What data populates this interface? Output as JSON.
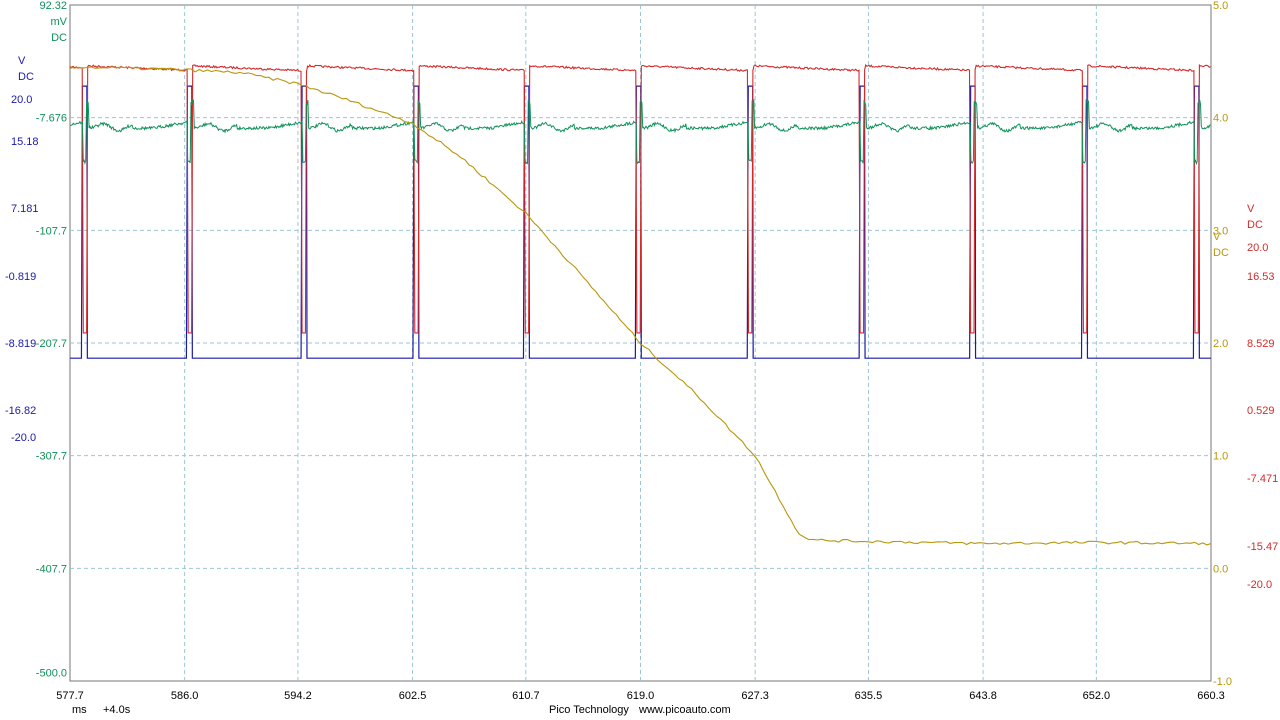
{
  "chart_data": {
    "type": "line",
    "x_axis": {
      "ticks": [
        "577.7",
        "586.0",
        "594.2",
        "602.5",
        "610.7",
        "619.0",
        "627.3",
        "635.5",
        "643.8",
        "652.0",
        "660.3"
      ],
      "unit": "ms",
      "offset": "+4.0s",
      "range": [
        577.7,
        660.3
      ]
    },
    "axes": {
      "green": {
        "color": "#10915a",
        "unit_lines": [
          "mV",
          "DC"
        ],
        "ticks": [
          "92.32",
          "-7.676",
          "-107.7",
          "-207.7",
          "-307.7",
          "-407.7",
          "-500.0"
        ],
        "range": [
          -507.7,
          92.32
        ]
      },
      "blue": {
        "color": "#1a1aa8",
        "unit_lines": [
          "V",
          "DC"
        ],
        "ticks": [
          "20.0",
          "15.18",
          "7.181",
          "-0.819",
          "-8.819",
          "-16.82",
          "-20.0"
        ],
        "range": [
          -20.0,
          20.0
        ]
      },
      "red": {
        "color": "#d42a2a",
        "unit_lines": [
          "V",
          "DC"
        ],
        "ticks": [
          "20.0",
          "16.53",
          "8.529",
          "0.529",
          "-7.471",
          "-15.47",
          "-20.0"
        ],
        "range": [
          -20.0,
          20.0
        ]
      },
      "yellow": {
        "color": "#b8960c",
        "unit_lines": [
          "V",
          "DC"
        ],
        "ticks": [
          "5.0",
          "4.0",
          "3.0",
          "2.0",
          "1.0",
          "0.0",
          "-1.0"
        ],
        "range": [
          -1.0,
          5.0
        ]
      }
    },
    "series": [
      {
        "axis": "green",
        "approx_shape": "periodic ringing pulses",
        "pulse_times_ms": [
          578.6,
          586.2,
          594.5,
          602.6,
          610.6,
          618.7,
          626.8,
          634.9,
          642.9,
          651.0,
          659.1
        ],
        "baseline_mV": -17,
        "dip_mV": -45,
        "spike_mV": 9
      },
      {
        "axis": "blue",
        "approx_shape": "square pulse train",
        "pulse_times_ms": [
          578.6,
          586.2,
          594.5,
          602.6,
          610.6,
          618.7,
          626.8,
          634.9,
          642.9,
          651.0,
          659.1
        ],
        "low_V": -0.9,
        "high_V": 15.2
      },
      {
        "axis": "red",
        "approx_shape": "square pulse train (inverted)",
        "pulse_times_ms": [
          578.6,
          586.2,
          594.5,
          602.6,
          610.6,
          618.7,
          626.8,
          634.9,
          642.9,
          651.0,
          659.1
        ],
        "high_V": 16.4,
        "low_V": 0.6
      },
      {
        "axis": "yellow",
        "approx_shape": "falling ramp",
        "x": [
          577.7,
          585,
          590,
          594.2,
          598,
          602.5,
          606,
          610.7,
          614,
          619.0,
          623,
          627.3,
          630.5,
          631.5,
          635.5,
          643.8,
          652.0,
          660.3
        ],
        "y": [
          4.45,
          4.43,
          4.4,
          4.3,
          4.15,
          3.95,
          3.65,
          3.15,
          2.7,
          2.0,
          1.55,
          1.0,
          0.3,
          0.25,
          0.24,
          0.22,
          0.23,
          0.22
        ]
      }
    ],
    "grid": true
  },
  "footer": {
    "unit": "ms",
    "time_offset": "+4.0s",
    "brand": "Pico Technology",
    "website": "www.picoauto.com"
  }
}
